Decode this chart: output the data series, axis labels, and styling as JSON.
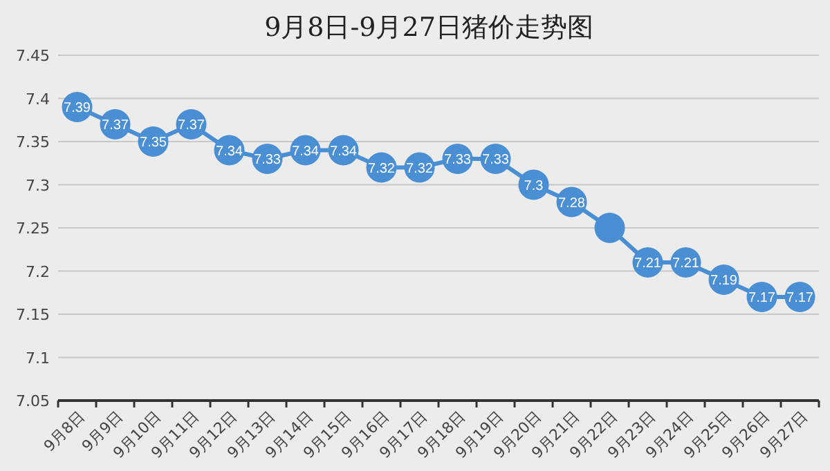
{
  "chart_data": {
    "type": "line",
    "title": "9月8日-9月27日猪价走势图",
    "categories": [
      "9月8日",
      "9月9日",
      "9月10日",
      "9月11日",
      "9月12日",
      "9月13日",
      "9月14日",
      "9月15日",
      "9月16日",
      "9月17日",
      "9月18日",
      "9月19日",
      "9月20日",
      "9月21日",
      "9月22日",
      "9月23日",
      "9月24日",
      "9月25日",
      "9月26日",
      "9月27日"
    ],
    "series": [
      {
        "color": "#4a8fd4",
        "values": [
          7.39,
          7.37,
          7.35,
          7.37,
          7.34,
          7.33,
          7.34,
          7.34,
          7.32,
          7.32,
          7.33,
          7.33,
          7.3,
          7.28,
          7.25,
          7.21,
          7.21,
          7.19,
          7.17,
          7.17
        ],
        "value_labels": [
          "7.39",
          "7.37",
          "7.35",
          "7.37",
          "7.34",
          "7.33",
          "7.34",
          "7.34",
          "7.32",
          "7.32",
          "7.33",
          "7.33",
          "7.3",
          "7.28",
          null,
          "7.21",
          "7.21",
          "7.19",
          "7.17",
          "7.17"
        ]
      }
    ],
    "ylim": [
      7.05,
      7.45
    ],
    "yticks": [
      7.05,
      7.1,
      7.15,
      7.2,
      7.25,
      7.3,
      7.35,
      7.4,
      7.45
    ],
    "grid": "y",
    "marker": "circle",
    "line_style": "solid"
  }
}
